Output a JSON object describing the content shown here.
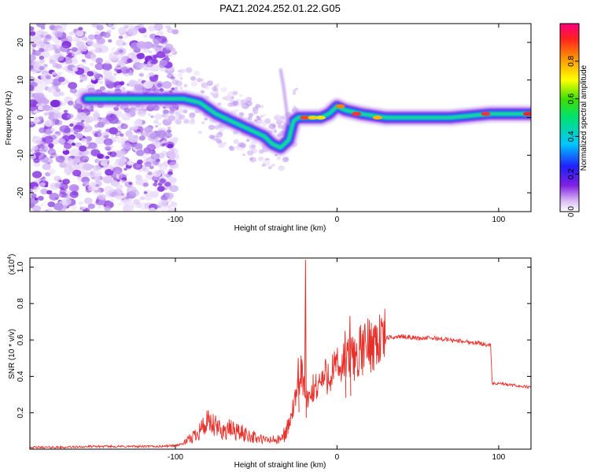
{
  "title": "PAZ1.2024.252.01.22.G05",
  "chart_data": [
    {
      "type": "heatmap",
      "xlabel": "Height of straight line (km)",
      "ylabel": "Frequency (Hz)",
      "xlim": [
        -190,
        120
      ],
      "ylim": [
        -25,
        25
      ],
      "xticks": [
        -100,
        0,
        100
      ],
      "xtick_labels": [
        "-100",
        "0",
        "100"
      ],
      "yticks": [
        -20,
        -10,
        0,
        10,
        20
      ],
      "ytick_labels": [
        "-20",
        "-10",
        "0",
        "10",
        "20"
      ],
      "colorbar": {
        "label": "Normalized spectral amplitude",
        "range": [
          0,
          1
        ],
        "ticks": [
          0.0,
          0.2,
          0.4,
          0.6,
          0.8
        ],
        "tick_labels": [
          "0.0",
          "0.2",
          "0.4",
          "0.6",
          "0.8"
        ],
        "colormap": "rainbow"
      },
      "ridge": {
        "x": [
          -155,
          -140,
          -120,
          -105,
          -95,
          -85,
          -75,
          -65,
          -55,
          -45,
          -40,
          -35,
          -30,
          -27,
          -24,
          -20,
          -15,
          -10,
          -5,
          0,
          5,
          15,
          30,
          50,
          70,
          95,
          120
        ],
        "y": [
          5,
          5,
          5,
          5,
          5,
          4,
          1,
          -1,
          -3,
          -5,
          -7,
          -8,
          -6,
          -1,
          0,
          0,
          0,
          0,
          1,
          3,
          2,
          1,
          0,
          0,
          0,
          1,
          1
        ]
      }
    },
    {
      "type": "line",
      "xlabel": "Height of straight line (km)",
      "ylabel": "SNR (10 * v/v)",
      "y_multiplier_label": "(x10",
      "y_multiplier_exp": "4",
      "xlim": [
        -190,
        120
      ],
      "ylim": [
        0,
        1.05
      ],
      "xticks": [
        -100,
        0,
        100
      ],
      "xtick_labels": [
        "-100",
        "0",
        "100"
      ],
      "yticks": [
        0.2,
        0.4,
        0.6,
        0.8,
        1.0
      ],
      "ytick_labels": [
        "0.2",
        "0.4",
        "0.6",
        "0.8",
        "1.0"
      ],
      "series": [
        {
          "color": "#e8302a",
          "x": [
            -190,
            -170,
            -150,
            -130,
            -120,
            -110,
            -100,
            -95,
            -90,
            -85,
            -80,
            -75,
            -70,
            -65,
            -60,
            -55,
            -50,
            -45,
            -40,
            -35,
            -30,
            -28,
            -25,
            -22,
            -20,
            -18,
            -15,
            -12,
            -10,
            -5,
            0,
            5,
            10,
            15,
            20,
            25,
            30,
            40,
            50,
            60,
            70,
            80,
            90,
            95,
            96,
            100,
            110,
            120
          ],
          "y": [
            0.01,
            0.01,
            0.015,
            0.015,
            0.015,
            0.015,
            0.02,
            0.03,
            0.06,
            0.11,
            0.14,
            0.12,
            0.1,
            0.11,
            0.09,
            0.08,
            0.06,
            0.05,
            0.05,
            0.05,
            0.12,
            0.2,
            0.28,
            0.45,
            0.3,
            0.25,
            0.32,
            0.36,
            0.37,
            0.42,
            0.44,
            0.47,
            0.5,
            0.54,
            0.58,
            0.6,
            0.61,
            0.62,
            0.61,
            0.61,
            0.6,
            0.59,
            0.58,
            0.57,
            0.36,
            0.36,
            0.35,
            0.34
          ]
        }
      ],
      "spikes": [
        {
          "x": -19.5,
          "y": 1.04
        },
        {
          "x": 8,
          "y": 0.73
        },
        {
          "x": 5,
          "y": 0.65
        },
        {
          "x": -24,
          "y": 0.5
        }
      ]
    }
  ]
}
